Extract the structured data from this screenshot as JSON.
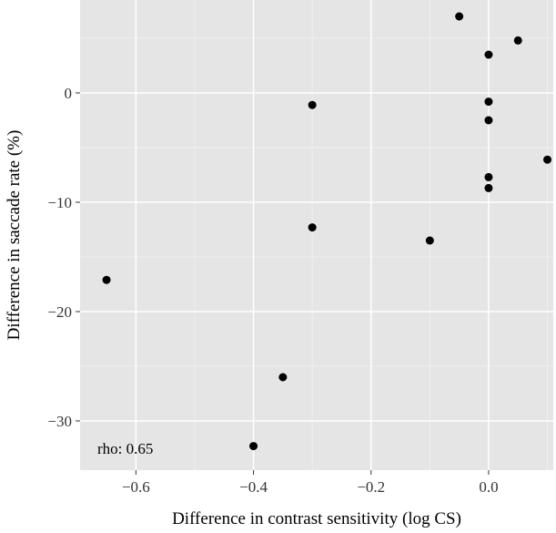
{
  "chart_data": {
    "type": "scatter",
    "title": "",
    "xlabel": "Difference in contrast sensitivity (log CS)",
    "ylabel": "Difference in saccade rate (%)",
    "xlim": [
      -0.695,
      0.11
    ],
    "ylim": [
      -34.5,
      8.5
    ],
    "xticks": [
      -0.6,
      -0.4,
      -0.2,
      0.0
    ],
    "xtick_labels": [
      "−0.6",
      "−0.4",
      "−0.2",
      "0.0"
    ],
    "yticks": [
      -30,
      -20,
      -10,
      0
    ],
    "ytick_labels": [
      "−30",
      "−20",
      "−10",
      "0"
    ],
    "grid": true,
    "annotation": "rho: 0.65",
    "points": [
      {
        "x": -0.65,
        "y": -17.1
      },
      {
        "x": -0.4,
        "y": -32.3
      },
      {
        "x": -0.35,
        "y": -26.0
      },
      {
        "x": -0.3,
        "y": -1.1
      },
      {
        "x": -0.3,
        "y": -12.3
      },
      {
        "x": -0.1,
        "y": -13.5
      },
      {
        "x": -0.05,
        "y": 7.0
      },
      {
        "x": 0.0,
        "y": 3.5
      },
      {
        "x": 0.0,
        "y": -0.8
      },
      {
        "x": 0.0,
        "y": -2.5
      },
      {
        "x": 0.0,
        "y": -7.7
      },
      {
        "x": 0.0,
        "y": -8.7
      },
      {
        "x": 0.05,
        "y": 4.8
      },
      {
        "x": 0.1,
        "y": -6.1
      }
    ]
  },
  "colors": {
    "panel": "#e5e5e5",
    "grid_major": "#ffffff",
    "grid_minor": "#f2f2f2",
    "point": "#000000",
    "tick_text": "#333333"
  }
}
